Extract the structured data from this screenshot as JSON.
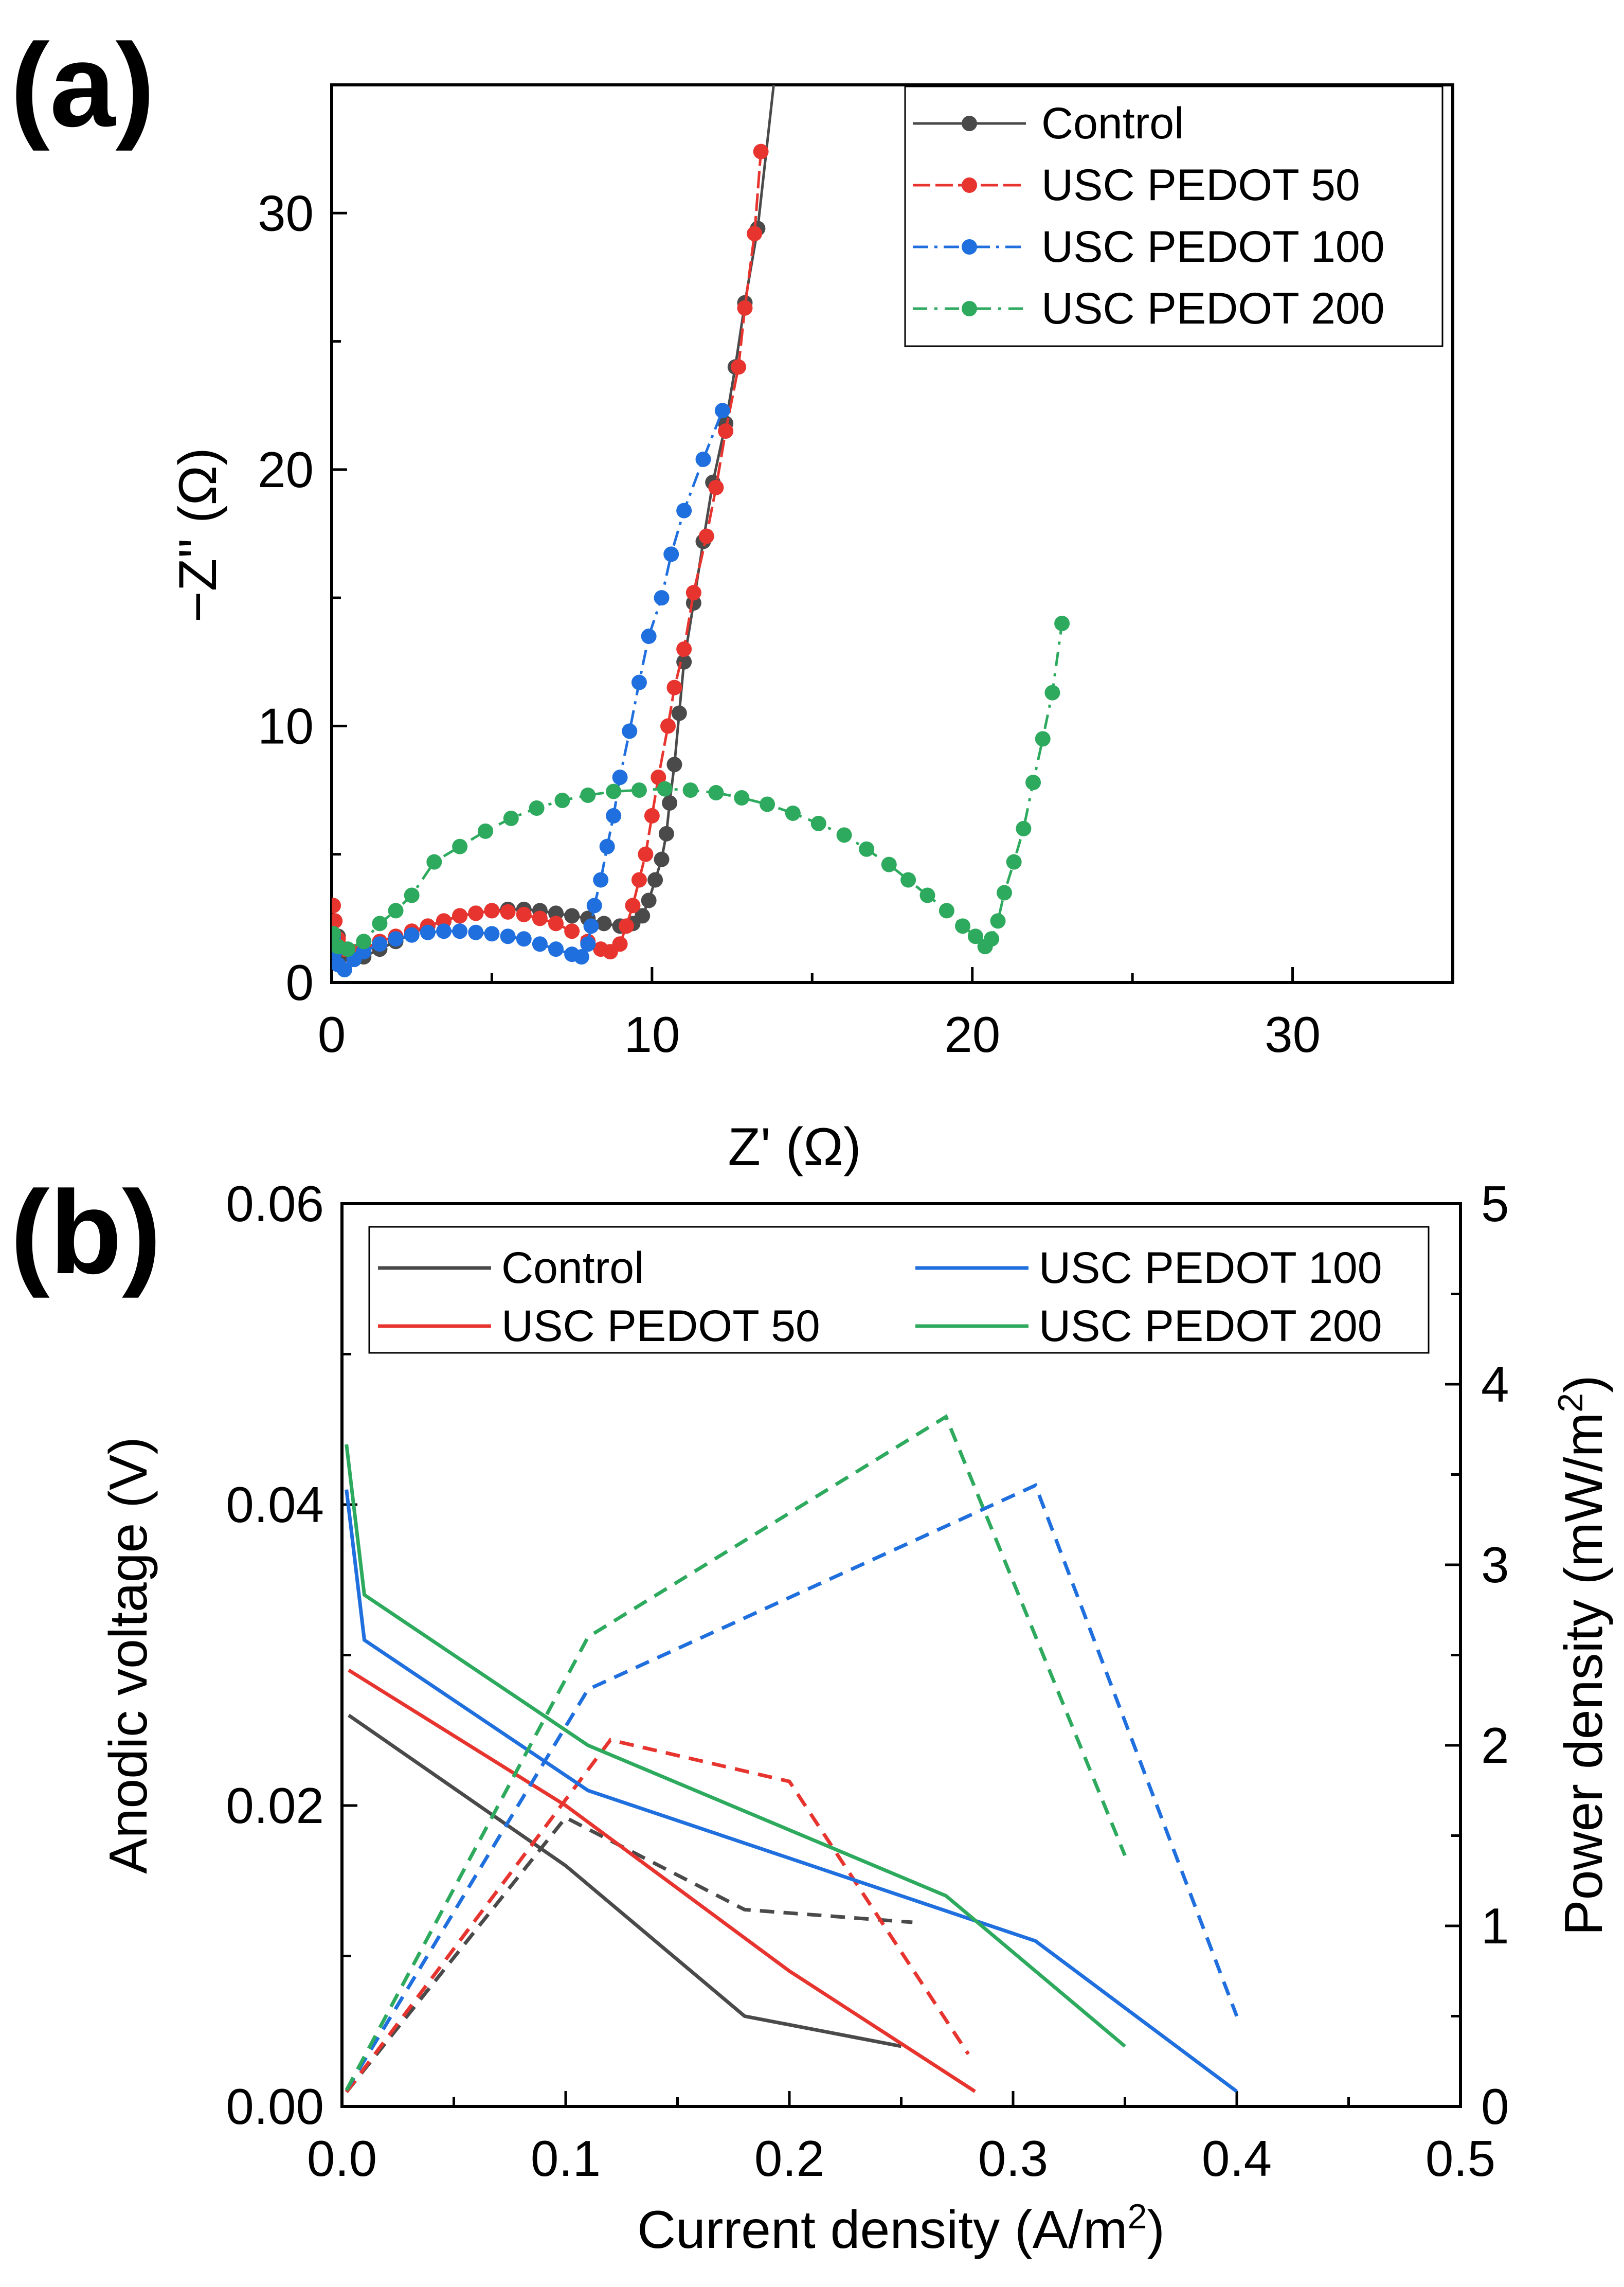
{
  "chart_data": [
    {
      "panel": "(a)",
      "type": "scatter",
      "xlabel": "Z' (Ω)",
      "ylabel": "−Z'' (Ω)",
      "xlim": [
        0,
        35
      ],
      "ylim": [
        0,
        35
      ],
      "xticks": [
        "0",
        "10",
        "20",
        "30"
      ],
      "yticks": [
        "0",
        "10",
        "20",
        "30"
      ],
      "legend_position": "top-right",
      "series": [
        {
          "name": "Control",
          "color": "#4a4a4a",
          "points": [
            [
              0.2,
              1.8
            ],
            [
              0.4,
              1.1
            ],
            [
              0.7,
              0.9
            ],
            [
              1.0,
              1.0
            ],
            [
              1.5,
              1.3
            ],
            [
              2.0,
              1.6
            ],
            [
              2.5,
              1.9
            ],
            [
              3.0,
              2.2
            ],
            [
              3.5,
              2.4
            ],
            [
              4.0,
              2.6
            ],
            [
              4.5,
              2.7
            ],
            [
              5.0,
              2.8
            ],
            [
              5.5,
              2.85
            ],
            [
              6.0,
              2.85
            ],
            [
              6.5,
              2.8
            ],
            [
              7.0,
              2.7
            ],
            [
              7.5,
              2.6
            ],
            [
              8.0,
              2.5
            ],
            [
              8.5,
              2.3
            ],
            [
              9.0,
              2.2
            ],
            [
              9.4,
              2.3
            ],
            [
              9.7,
              2.6
            ],
            [
              9.9,
              3.2
            ],
            [
              10.1,
              4.0
            ],
            [
              10.3,
              4.8
            ],
            [
              10.45,
              5.8
            ],
            [
              10.55,
              7.0
            ],
            [
              10.7,
              8.5
            ],
            [
              10.85,
              10.5
            ],
            [
              11.0,
              12.5
            ],
            [
              11.3,
              14.8
            ],
            [
              11.6,
              17.2
            ],
            [
              11.9,
              19.5
            ],
            [
              12.3,
              21.8
            ],
            [
              12.6,
              24.0
            ],
            [
              12.9,
              26.5
            ],
            [
              13.3,
              29.4
            ],
            [
              13.8,
              35.0
            ]
          ]
        },
        {
          "name": "USC PEDOT 50",
          "color": "#e8342f",
          "points": [
            [
              0.05,
              3.0
            ],
            [
              0.1,
              2.4
            ],
            [
              0.2,
              1.7
            ],
            [
              0.4,
              1.3
            ],
            [
              0.7,
              1.2
            ],
            [
              1.0,
              1.3
            ],
            [
              1.5,
              1.6
            ],
            [
              2.0,
              1.8
            ],
            [
              2.5,
              2.0
            ],
            [
              3.0,
              2.2
            ],
            [
              3.5,
              2.4
            ],
            [
              4.0,
              2.6
            ],
            [
              4.5,
              2.7
            ],
            [
              5.0,
              2.8
            ],
            [
              5.5,
              2.75
            ],
            [
              6.0,
              2.65
            ],
            [
              6.5,
              2.5
            ],
            [
              7.0,
              2.3
            ],
            [
              7.5,
              2.0
            ],
            [
              8.0,
              1.6
            ],
            [
              8.4,
              1.3
            ],
            [
              8.7,
              1.2
            ],
            [
              9.0,
              1.5
            ],
            [
              9.2,
              2.2
            ],
            [
              9.4,
              3.0
            ],
            [
              9.6,
              4.0
            ],
            [
              9.8,
              5.0
            ],
            [
              10.0,
              6.5
            ],
            [
              10.2,
              8.0
            ],
            [
              10.5,
              10.0
            ],
            [
              10.7,
              11.5
            ],
            [
              11.0,
              13.0
            ],
            [
              11.3,
              15.2
            ],
            [
              11.7,
              17.4
            ],
            [
              12.0,
              19.3
            ],
            [
              12.3,
              21.5
            ],
            [
              12.7,
              24.0
            ],
            [
              12.9,
              26.3
            ],
            [
              13.2,
              29.2
            ],
            [
              13.4,
              32.4
            ]
          ]
        },
        {
          "name": "USC PEDOT 100",
          "color": "#1f6fde",
          "points": [
            [
              0.05,
              1.8
            ],
            [
              0.1,
              1.2
            ],
            [
              0.2,
              0.7
            ],
            [
              0.4,
              0.5
            ],
            [
              0.7,
              0.9
            ],
            [
              1.0,
              1.2
            ],
            [
              1.5,
              1.5
            ],
            [
              2.0,
              1.7
            ],
            [
              2.5,
              1.85
            ],
            [
              3.0,
              1.95
            ],
            [
              3.5,
              2.0
            ],
            [
              4.0,
              2.0
            ],
            [
              4.5,
              1.95
            ],
            [
              5.0,
              1.9
            ],
            [
              5.5,
              1.8
            ],
            [
              6.0,
              1.7
            ],
            [
              6.5,
              1.5
            ],
            [
              7.0,
              1.3
            ],
            [
              7.5,
              1.1
            ],
            [
              7.8,
              1.0
            ],
            [
              8.0,
              1.5
            ],
            [
              8.1,
              2.2
            ],
            [
              8.2,
              3.0
            ],
            [
              8.4,
              4.0
            ],
            [
              8.6,
              5.3
            ],
            [
              8.8,
              6.5
            ],
            [
              9.0,
              8.0
            ],
            [
              9.3,
              9.8
            ],
            [
              9.6,
              11.7
            ],
            [
              9.9,
              13.5
            ],
            [
              10.3,
              15.0
            ],
            [
              10.6,
              16.7
            ],
            [
              11.0,
              18.4
            ],
            [
              11.6,
              20.4
            ],
            [
              12.2,
              22.3
            ]
          ]
        },
        {
          "name": "USC PEDOT 200",
          "color": "#2eaa5e",
          "points": [
            [
              0.05,
              1.9
            ],
            [
              0.2,
              1.4
            ],
            [
              0.5,
              1.3
            ],
            [
              1.0,
              1.6
            ],
            [
              1.5,
              2.3
            ],
            [
              2.0,
              2.8
            ],
            [
              2.5,
              3.4
            ],
            [
              3.2,
              4.7
            ],
            [
              4.0,
              5.3
            ],
            [
              4.8,
              5.9
            ],
            [
              5.6,
              6.4
            ],
            [
              6.4,
              6.8
            ],
            [
              7.2,
              7.1
            ],
            [
              8.0,
              7.3
            ],
            [
              8.8,
              7.45
            ],
            [
              9.6,
              7.5
            ],
            [
              10.4,
              7.55
            ],
            [
              11.2,
              7.5
            ],
            [
              12.0,
              7.4
            ],
            [
              12.8,
              7.2
            ],
            [
              13.6,
              6.95
            ],
            [
              14.4,
              6.6
            ],
            [
              15.2,
              6.2
            ],
            [
              16.0,
              5.75
            ],
            [
              16.7,
              5.2
            ],
            [
              17.4,
              4.6
            ],
            [
              18.0,
              4.0
            ],
            [
              18.6,
              3.4
            ],
            [
              19.2,
              2.8
            ],
            [
              19.7,
              2.2
            ],
            [
              20.1,
              1.8
            ],
            [
              20.4,
              1.4
            ],
            [
              20.6,
              1.7
            ],
            [
              20.8,
              2.4
            ],
            [
              21.0,
              3.5
            ],
            [
              21.3,
              4.7
            ],
            [
              21.6,
              6.0
            ],
            [
              21.9,
              7.8
            ],
            [
              22.2,
              9.5
            ],
            [
              22.5,
              11.3
            ],
            [
              22.8,
              14.0
            ]
          ]
        }
      ]
    },
    {
      "panel": "(b)",
      "type": "line",
      "xlabel": "Current density (A/m²)",
      "ylabel_left": "Anodic voltage (V)",
      "ylabel_right": "Power density (mW/m²)",
      "xlim": [
        0,
        0.5
      ],
      "ylim_left": [
        0,
        0.06
      ],
      "ylim_right": [
        0,
        5
      ],
      "xticks": [
        "0.0",
        "0.1",
        "0.2",
        "0.3",
        "0.4",
        "0.5"
      ],
      "yticks_left": [
        "0.00",
        "0.02",
        "0.04",
        "0.06"
      ],
      "yticks_right": [
        "0",
        "1",
        "2",
        "3",
        "4",
        "5"
      ],
      "legend_position": "top",
      "legend_note": "solid = anodic voltage (left axis), dashed = power density (right axis)",
      "series": [
        {
          "name": "Control",
          "color": "#4a4a4a",
          "voltage": [
            [
              0.003,
              0.026
            ],
            [
              0.1,
              0.016
            ],
            [
              0.18,
              0.006
            ],
            [
              0.25,
              0.004
            ]
          ],
          "power": [
            [
              0.002,
              0.08
            ],
            [
              0.1,
              1.6
            ],
            [
              0.18,
              1.09
            ],
            [
              0.255,
              1.02
            ]
          ]
        },
        {
          "name": "USC PEDOT 50",
          "color": "#e8342f",
          "voltage": [
            [
              0.003,
              0.029
            ],
            [
              0.1,
              0.02
            ],
            [
              0.2,
              0.009
            ],
            [
              0.283,
              0.001
            ]
          ],
          "power": [
            [
              0.002,
              0.08
            ],
            [
              0.12,
              2.03
            ],
            [
              0.2,
              1.8
            ],
            [
              0.28,
              0.29
            ]
          ]
        },
        {
          "name": "USC PEDOT 100",
          "color": "#1f6fde",
          "voltage": [
            [
              0.002,
              0.041
            ],
            [
              0.01,
              0.031
            ],
            [
              0.11,
              0.021
            ],
            [
              0.31,
              0.011
            ],
            [
              0.4,
              0.001
            ]
          ],
          "power": [
            [
              0.002,
              0.09
            ],
            [
              0.11,
              2.31
            ],
            [
              0.31,
              3.44
            ],
            [
              0.4,
              0.5
            ]
          ]
        },
        {
          "name": "USC PEDOT 200",
          "color": "#2eaa5e",
          "voltage": [
            [
              0.002,
              0.044
            ],
            [
              0.01,
              0.034
            ],
            [
              0.11,
              0.024
            ],
            [
              0.27,
              0.014
            ],
            [
              0.35,
              0.004
            ]
          ],
          "power": [
            [
              0.002,
              0.09
            ],
            [
              0.11,
              2.6
            ],
            [
              0.27,
              3.82
            ],
            [
              0.35,
              1.39
            ]
          ]
        }
      ]
    }
  ]
}
